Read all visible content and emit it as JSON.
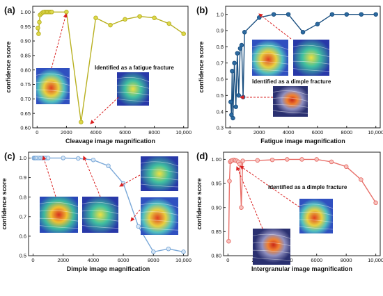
{
  "chart_data": [
    {
      "type": "line",
      "panel_label": "(a)",
      "xlabel": "Cleavage image magnification",
      "ylabel": "confidence score",
      "xlim": [
        -300,
        10300
      ],
      "ylim": [
        0.6,
        1.02
      ],
      "xticks": [
        0,
        2000,
        4000,
        6000,
        8000,
        10000
      ],
      "xtick_labels": [
        "0",
        "2000",
        "4000",
        "6000",
        "8000",
        "10,000"
      ],
      "yticks": [
        0.6,
        0.65,
        0.7,
        0.75,
        0.8,
        0.85,
        0.9,
        0.95,
        1.0
      ],
      "ytick_labels": [
        "0.60",
        "0.65",
        "0.70",
        "0.75",
        "0.80",
        "0.85",
        "0.90",
        "0.95",
        "1.00"
      ],
      "color": "#b8b020",
      "marker_fill": "#ddd84a",
      "x": [
        50,
        100,
        150,
        200,
        300,
        400,
        500,
        600,
        700,
        800,
        900,
        1000,
        2000,
        3000,
        4000,
        5000,
        6000,
        7000,
        8000,
        9000,
        10000
      ],
      "y": [
        0.945,
        0.925,
        0.965,
        0.99,
        0.995,
        0.999,
        1.0,
        1.0,
        1.0,
        1.0,
        1.0,
        1.0,
        1.0,
        0.62,
        0.98,
        0.955,
        0.975,
        0.985,
        0.98,
        0.96,
        0.925
      ],
      "annotations": [
        "Identified as a fatigue fracture"
      ]
    },
    {
      "type": "line",
      "panel_label": "(b)",
      "xlabel": "Fatigue image magnification",
      "ylabel": "confidence score",
      "xlim": [
        -300,
        10300
      ],
      "ylim": [
        0.3,
        1.05
      ],
      "xticks": [
        0,
        2000,
        4000,
        6000,
        8000,
        10000
      ],
      "xtick_labels": [
        "0",
        "2000",
        "4000",
        "6000",
        "8000",
        "10,000"
      ],
      "yticks": [
        0.3,
        0.4,
        0.5,
        0.6,
        0.7,
        0.8,
        0.9,
        1.0
      ],
      "ytick_labels": [
        "0.3",
        "0.4",
        "0.5",
        "0.6",
        "0.7",
        "0.8",
        "0.9",
        "1.0"
      ],
      "color": "#1a4f80",
      "marker_fill": "#2c6aa0",
      "x": [
        50,
        100,
        150,
        200,
        300,
        400,
        500,
        600,
        700,
        800,
        900,
        1000,
        2000,
        3000,
        4000,
        5000,
        6000,
        7000,
        8000,
        9000,
        10000
      ],
      "y": [
        0.46,
        0.38,
        0.65,
        0.36,
        0.7,
        0.43,
        0.76,
        0.5,
        0.79,
        0.81,
        0.49,
        0.89,
        0.98,
        1.0,
        1.0,
        0.89,
        0.94,
        1.0,
        1.0,
        1.0,
        1.0
      ],
      "annotations": [
        "Identified as a dimple fracture"
      ]
    },
    {
      "type": "line",
      "panel_label": "(c)",
      "xlabel": "Dimple image magnification",
      "ylabel": "confidence score",
      "xlim": [
        -300,
        10300
      ],
      "ylim": [
        0.5,
        1.03
      ],
      "xticks": [
        0,
        2000,
        4000,
        6000,
        8000,
        10000
      ],
      "xtick_labels": [
        "0",
        "2000",
        "4000",
        "6000",
        "8000",
        "10,000"
      ],
      "yticks": [
        0.5,
        0.6,
        0.7,
        0.8,
        0.9,
        1.0
      ],
      "ytick_labels": [
        "0.5",
        "0.6",
        "0.7",
        "0.8",
        "0.9",
        "1.0"
      ],
      "color": "#7aa8d8",
      "marker_fill": "#d6e6f6",
      "x": [
        50,
        100,
        150,
        200,
        300,
        400,
        500,
        600,
        700,
        800,
        900,
        1000,
        2000,
        3000,
        4000,
        5000,
        6000,
        7000,
        8000,
        9000,
        10000
      ],
      "y": [
        1.0,
        1.0,
        1.0,
        1.0,
        1.0,
        1.0,
        1.0,
        1.0,
        1.0,
        1.0,
        1.0,
        1.0,
        1.0,
        0.998,
        0.99,
        0.96,
        0.87,
        0.65,
        0.52,
        0.535,
        0.52
      ],
      "annotations": []
    },
    {
      "type": "line",
      "panel_label": "(d)",
      "xlabel": "Intergranular image magnification",
      "ylabel": "confidence score",
      "xlim": [
        -300,
        10300
      ],
      "ylim": [
        0.8,
        1.015
      ],
      "xticks": [
        0,
        2000,
        4000,
        6000,
        8000,
        10000
      ],
      "xtick_labels": [
        "0",
        "2000",
        "4000",
        "6000",
        "8000",
        "10,000"
      ],
      "yticks": [
        0.8,
        0.85,
        0.9,
        0.95,
        1.0
      ],
      "ytick_labels": [
        "0.80",
        "0.85",
        "0.90",
        "0.95",
        "1.00"
      ],
      "color": "#e8706a",
      "marker_fill": "#f7c3bf",
      "x": [
        50,
        100,
        150,
        200,
        300,
        400,
        500,
        600,
        700,
        800,
        900,
        1000,
        2000,
        3000,
        4000,
        5000,
        6000,
        7000,
        8000,
        9000,
        10000
      ],
      "y": [
        0.83,
        0.955,
        0.995,
        0.997,
        0.998,
        0.999,
        0.998,
        0.997,
        0.995,
        0.99,
        0.9,
        0.997,
        0.998,
        0.999,
        1.0,
        1.0,
        1.0,
        0.995,
        0.985,
        0.958,
        0.91
      ],
      "annotations": [
        "Identified as a dimple fracture"
      ]
    }
  ]
}
